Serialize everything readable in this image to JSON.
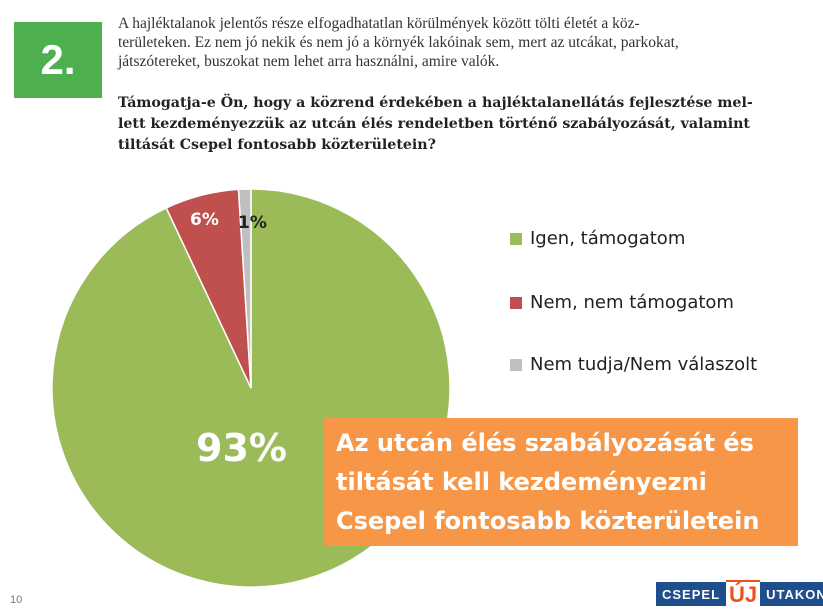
{
  "header": {
    "number": "2.",
    "intro_lines": [
      "A hajléktalanok jelentős része elfogadhatatlan körülmények között tölti életét a köz-",
      "területeken. Ez nem jó nekik és nem jó a környék lakóinak sem, mert az utcákat, parkokat,",
      "játszótereket, buszokat nem lehet arra használni, amire valók."
    ],
    "question_lines": [
      "Támogatja-e Ön, hogy a közrend érdekében a hajléktalanellátás fejlesztése mel-",
      "lett kezdeményezzük az utcán élés rendeletben történő szabályozását, valamint",
      "tiltását Csepel fontosabb közterületein?"
    ]
  },
  "chart_data": {
    "type": "pie",
    "series": [
      {
        "name": "Igen, támogatom",
        "value": 93,
        "label": "93%",
        "color": "#9bbb59"
      },
      {
        "name": "Nem, nem támogatom",
        "value": 6,
        "label": "6%",
        "color": "#c0504d"
      },
      {
        "name": "Nem tudja/Nem válaszolt",
        "value": 1,
        "label": "1%",
        "color": "#bfbfbf"
      }
    ],
    "legend_position": "right"
  },
  "callout": {
    "lines": [
      "Az utcán élés szabályozását és",
      "tiltását kell kezdeményezni",
      "Csepel fontosabb közterületein"
    ],
    "color": "#f79646"
  },
  "footer": {
    "page_number": "10",
    "logo_left": "CSEPEL",
    "logo_mid": "ÚJ",
    "logo_right": "UTAKON"
  }
}
